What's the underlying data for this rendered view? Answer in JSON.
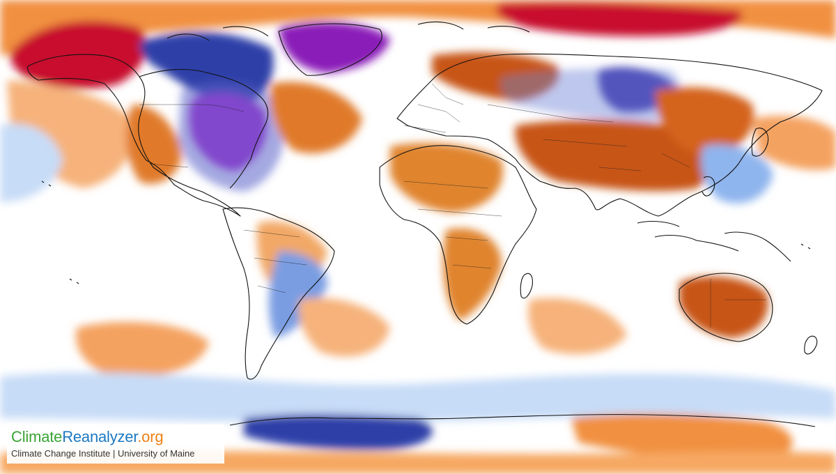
{
  "colors": {
    "ocean_neutral": "#ffffff",
    "warm_light": "#fbd2ad",
    "warm_mid": "#f1903f",
    "warm_strong": "#c75512",
    "warm_extreme": "#c8102e",
    "cold_light": "#d6e7fa",
    "cold_mid": "#8fb5ee",
    "cold_strong": "#2f3fa8",
    "cold_extreme": "#b226d1",
    "coastline": "#111111",
    "brand_climate": "#3aa335",
    "brand_reanalyzer": "#1a78c2",
    "brand_org": "#f07f14"
  },
  "watermark": {
    "logo_part1": "Climate",
    "logo_part2": "Reanalyzer",
    "logo_part3": ".org",
    "subtitle": "Climate Change Institute | University of Maine"
  }
}
